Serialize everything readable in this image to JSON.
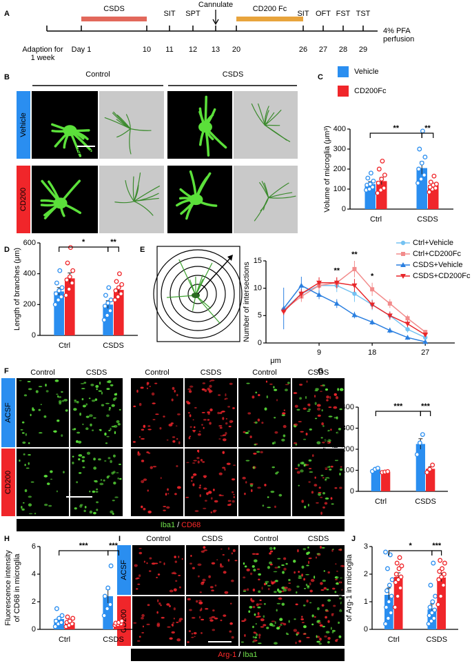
{
  "panel_letters": [
    "A",
    "B",
    "C",
    "D",
    "E",
    "F",
    "G",
    "H",
    "I",
    "J"
  ],
  "timeline": {
    "phases": [
      {
        "label": "CSDS",
        "color": "#e2685b"
      },
      {
        "label": "CD200 Fc",
        "color": "#e8a43c"
      }
    ],
    "top_labels": [
      "SIT",
      "SPT",
      "Cannulate",
      "SIT",
      "OFT",
      "FST",
      "TST"
    ],
    "bottom_labels": [
      [
        "Adaption for",
        "1 week"
      ],
      [
        "Day 1"
      ],
      [
        "10"
      ],
      [
        "11"
      ],
      [
        "12"
      ],
      [
        "13"
      ],
      [
        "20"
      ],
      [
        "26"
      ],
      [
        "27"
      ],
      [
        "28"
      ],
      [
        "29"
      ]
    ],
    "end_label": [
      "4% PFA",
      "perfusion"
    ]
  },
  "panel_b": {
    "column_headers": [
      "Control",
      "CSDS"
    ],
    "row_labels": [
      {
        "text": "Vehicle",
        "color": "#2a8ef0"
      },
      {
        "text": "CD200",
        "color": "#f0262a"
      }
    ],
    "scale_bar": "10μm"
  },
  "panel_f": {
    "column_headers": [
      "Control",
      "CSDS",
      "Control",
      "CSDS",
      "Control",
      "CSDS"
    ],
    "row_labels": [
      {
        "text": "ACSF",
        "color": "#2a8ef0"
      },
      {
        "text": "CD200",
        "color": "#f0262a"
      }
    ],
    "scale_bar": "80μm",
    "stain_label": [
      {
        "text": "Iba1",
        "color": "#6fe04a"
      },
      {
        "text": "/",
        "color": "#ffffff"
      },
      {
        "text": "CD68",
        "color": "#ff2a2a"
      }
    ]
  },
  "panel_i": {
    "column_headers": [
      "Control",
      "CSDS",
      "Control",
      "CSDS"
    ],
    "row_labels": [
      {
        "text": "ACSF",
        "color": "#2a8ef0"
      },
      {
        "text": "CD200",
        "color": "#f0262a"
      }
    ],
    "scale_bar": "80μm",
    "stain_label": [
      {
        "text": "Arg-1",
        "color": "#ff2a2a"
      },
      {
        "text": "/",
        "color": "#ffffff"
      },
      {
        "text": "Iba1",
        "color": "#6fe04a"
      }
    ]
  },
  "chart_data": [
    {
      "type": "bar",
      "ylabel": [
        "Volume of microglia (μm³)"
      ],
      "categories": [
        "Ctrl",
        "CSDS"
      ],
      "ylim": [
        0,
        400
      ],
      "yticks": [
        0,
        100,
        200,
        300,
        400
      ],
      "significance": [
        "**",
        "**"
      ],
      "series": [
        {
          "name": "Vehicle",
          "color": "#2a8ef0",
          "values": [
            125,
            205
          ],
          "errors": [
            12,
            32
          ],
          "points": [
            [
              95,
              100,
              110,
              120,
              125,
              140,
              155,
              180
            ],
            [
              130,
              150,
              170,
              200,
              230,
              260,
              300,
              390
            ]
          ]
        },
        {
          "name": "CD200Fc",
          "color": "#f0262a",
          "values": [
            140,
            120
          ],
          "errors": [
            18,
            10
          ],
          "points": [
            [
              80,
              95,
              105,
              130,
              150,
              170,
              200,
              240
            ],
            [
              85,
              100,
              105,
              110,
              120,
              125,
              135,
              165
            ]
          ]
        }
      ]
    },
    {
      "type": "bar",
      "ylabel": [
        "Length of  branches (μm)"
      ],
      "categories": [
        "Ctrl",
        "CSDS"
      ],
      "ylim": [
        0,
        600
      ],
      "yticks": [
        0,
        200,
        400,
        600
      ],
      "significance": [
        "*",
        "**"
      ],
      "series": [
        {
          "color": "#2a8ef0",
          "values": [
            285,
            200
          ],
          "errors": [
            25,
            25
          ],
          "points": [
            [
              200,
              230,
              250,
              270,
              290,
              310,
              340,
              420
            ],
            [
              100,
              130,
              160,
              190,
              210,
              230,
              260,
              310
            ]
          ]
        },
        {
          "color": "#f0262a",
          "values": [
            370,
            295
          ],
          "errors": [
            35,
            20
          ],
          "points": [
            [
              260,
              300,
              340,
              360,
              380,
              420,
              470,
              570
            ],
            [
              230,
              250,
              270,
              290,
              310,
              330,
              350,
              400
            ]
          ]
        }
      ]
    },
    {
      "type": "line",
      "ylabel": "Number of intersections",
      "xlabel": "μm",
      "legend": "upper right",
      "x": [
        3,
        6,
        9,
        12,
        15,
        18,
        21,
        24,
        27
      ],
      "xlim": [
        0,
        32
      ],
      "xticks": [
        9,
        18,
        27
      ],
      "ylim": [
        0,
        15
      ],
      "yticks": [
        0,
        5,
        10,
        15
      ],
      "annotations": [
        "**",
        "**",
        "*"
      ],
      "series": [
        {
          "name": "Ctrl+Vehicle",
          "color": "#74c2f2",
          "marker": "circle",
          "values": [
            6,
            9,
            10.5,
            10.5,
            9,
            7,
            5,
            2.5,
            1
          ],
          "errors": [
            0.8,
            1,
            1,
            1.2,
            1.5,
            1,
            0.8,
            0.6,
            0.4
          ]
        },
        {
          "name": "Ctrl+CD200Fc",
          "color": "#f28b8b",
          "marker": "square",
          "values": [
            6,
            8.5,
            10.5,
            11,
            13.5,
            9.8,
            7.2,
            4.5,
            2
          ],
          "errors": [
            0.7,
            1,
            0.8,
            1,
            1.5,
            1.2,
            0.8,
            0.6,
            0.4
          ]
        },
        {
          "name": "CSDS+Vehicle",
          "color": "#2a7fe0",
          "marker": "triangle-up",
          "values": [
            6.3,
            10.5,
            8.8,
            7.2,
            5.1,
            3.8,
            2.3,
            1,
            0.2
          ],
          "errors": [
            3.8,
            1.6,
            0.8,
            0.8,
            0.6,
            0.5,
            0.5,
            0.4,
            0.3
          ]
        },
        {
          "name": "CSDS+CD200Fc",
          "color": "#e8262a",
          "marker": "triangle-down",
          "values": [
            5.7,
            9,
            11,
            11,
            10.5,
            7,
            5,
            3.5,
            1.5
          ],
          "errors": [
            0.6,
            0.8,
            1,
            1,
            1.2,
            0.8,
            0.7,
            0.6,
            0.4
          ]
        }
      ]
    },
    {
      "type": "bar",
      "ylabel": [
        "Number of microglia",
        "per hemisection"
      ],
      "categories": [
        "Ctrl",
        "CSDS"
      ],
      "ylim": [
        0,
        400
      ],
      "yticks": [
        0,
        100,
        200,
        300,
        400
      ],
      "significance": [
        "***",
        "***"
      ],
      "series": [
        {
          "color": "#2a8ef0",
          "values": [
            105,
            225
          ],
          "errors": [
            5,
            25
          ],
          "points": [
            [
              95,
              105,
              110
            ],
            [
              175,
              230,
              270
            ]
          ]
        },
        {
          "color": "#f0262a",
          "values": [
            92,
            107
          ],
          "errors": [
            2,
            10
          ],
          "points": [
            [
              90,
              92,
              94
            ],
            [
              90,
              105,
              125
            ]
          ]
        }
      ]
    },
    {
      "type": "bar",
      "ylabel": [
        "Fluorescence intensity",
        "of CD68 in microglia"
      ],
      "categories": [
        "Ctrl",
        "CSDS"
      ],
      "ylim": [
        0,
        6
      ],
      "yticks": [
        0,
        2,
        4,
        6
      ],
      "significance": [
        "***",
        "***"
      ],
      "series": [
        {
          "color": "#2a8ef0",
          "values": [
            0.75,
            2.4
          ],
          "errors": [
            0.12,
            0.5
          ],
          "points": [
            [
              0.2,
              0.4,
              0.5,
              0.6,
              0.8,
              1.0,
              1.5
            ],
            [
              1.0,
              1.5,
              1.8,
              2.4,
              3.0,
              4.6
            ]
          ]
        },
        {
          "color": "#f0262a",
          "values": [
            0.5,
            0.45
          ],
          "errors": [
            0.08,
            0.05
          ],
          "points": [
            [
              0.2,
              0.3,
              0.4,
              0.5,
              0.6,
              0.8,
              0.9
            ],
            [
              0.3,
              0.35,
              0.4,
              0.45,
              0.5,
              0.6
            ]
          ]
        }
      ]
    },
    {
      "type": "bar",
      "ylabel": [
        "Fluorescence intensity",
        "of Arg-1 in microglia"
      ],
      "categories": [
        "Ctrl",
        "CSDS"
      ],
      "ylim": [
        0,
        3
      ],
      "yticks": [
        0,
        1,
        2,
        3
      ],
      "significance": [
        "*",
        "***"
      ],
      "series": [
        {
          "color": "#2a8ef0",
          "values": [
            1.25,
            0.72
          ],
          "errors": [
            0.25,
            0.2
          ],
          "points": [
            [
              0.2,
              0.4,
              0.6,
              0.8,
              1.0,
              1.2,
              1.4,
              1.6,
              1.8,
              2.2,
              2.7,
              2.8
            ],
            [
              0.2,
              0.3,
              0.4,
              0.5,
              0.6,
              0.7,
              0.8,
              1.0,
              1.2,
              1.6,
              2.4
            ]
          ]
        },
        {
          "color": "#f0262a",
          "values": [
            1.9,
            1.88
          ],
          "errors": [
            0.15,
            0.15
          ],
          "points": [
            [
              0.8,
              1.2,
              1.5,
              1.7,
              1.8,
              1.9,
              2.0,
              2.2,
              2.3,
              2.4,
              2.6
            ],
            [
              0.9,
              1.2,
              1.6,
              1.8,
              1.9,
              2.0,
              2.1,
              2.2,
              2.4,
              2.5
            ]
          ]
        }
      ]
    }
  ]
}
